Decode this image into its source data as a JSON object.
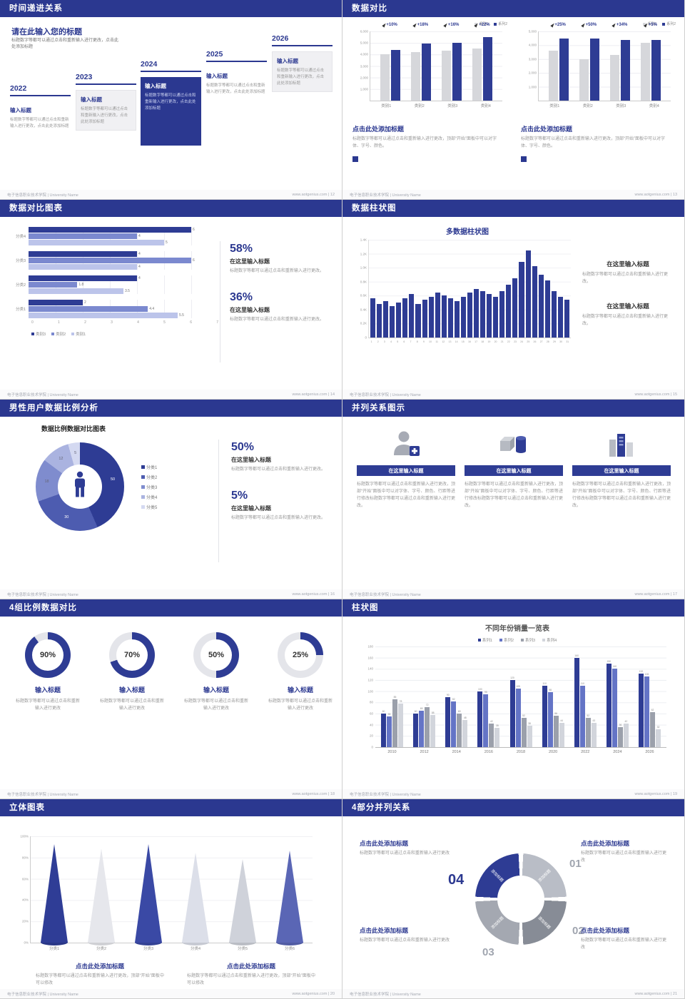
{
  "footer": {
    "org": "电子信息职业技术学院 | University Name"
  },
  "slides": {
    "timeline": {
      "header": "时间递进关系",
      "footer_right": "www.aotgenius.com | 12",
      "title": "请在此输入您的标题",
      "subtitle": "标题数字等都可以通过点击和重新输入进行更改，点击此处添加标题",
      "item_title": "输入标题",
      "item_body": "标题数字等都可以通过点击和重新输入进行更改，点击此处添加标题",
      "years": [
        "2022",
        "2023",
        "2024",
        "2025",
        "2026"
      ]
    },
    "compare": {
      "header": "数据对比",
      "footer_right": "www.aotgenius.com | 13",
      "caption_title": "点击此处添加标题",
      "caption_body": "标题数字等都可以通过点击和重新输入进行更改，顶部“开始”面板中可以对字体、字号、颜色。",
      "chart_data": [
        {
          "type": "bar",
          "legend": {
            "labels": [
              "系列1",
              "系列2"
            ],
            "colors": [
              "#d6d7db",
              "#2e3c94"
            ]
          },
          "categories": [
            "类别1",
            "类别2",
            "类别3",
            "类别4"
          ],
          "series": [
            {
              "name": "系列1",
              "values": [
                4000,
                4200,
                4300,
                4500
              ]
            },
            {
              "name": "系列2",
              "values": [
                4400,
                4950,
                5000,
                5500
              ]
            }
          ],
          "growth": [
            "+10%",
            "+18%",
            "+16%",
            "+22%"
          ],
          "y_labels": [
            "6,000",
            "5,000",
            "4,000",
            "3,000",
            "2,000",
            "1,000"
          ],
          "y_max": 6000
        },
        {
          "type": "bar",
          "legend": {
            "labels": [
              "系列1",
              "系列2"
            ],
            "colors": [
              "#d6d7db",
              "#2e3c94"
            ]
          },
          "categories": [
            "类别1",
            "类别2",
            "类别3",
            "类别4"
          ],
          "series": [
            {
              "name": "系列1",
              "values": [
                3600,
                3000,
                3300,
                4200
              ]
            },
            {
              "name": "系列2",
              "values": [
                4500,
                4500,
                4400,
                4400
              ]
            }
          ],
          "growth": [
            "+25%",
            "+50%",
            "+34%",
            "+5%"
          ],
          "y_labels": [
            "5,000",
            "4,000",
            "3,000",
            "2,000",
            "1,000"
          ],
          "y_max": 5000
        }
      ]
    },
    "hbar": {
      "header": "数据对比图表",
      "footer_right": "www.aotgenius.com | 14",
      "chart_data": {
        "type": "bar-horizontal",
        "categories": [
          "分类4",
          "分类3",
          "分类2",
          "分类1"
        ],
        "series": [
          {
            "name": "类别3",
            "color": "#2e3c94",
            "values": [
              6,
              4,
              4,
              2
            ]
          },
          {
            "name": "类别2",
            "color": "#7b89cf",
            "values": [
              4,
              6,
              1.8,
              4.4
            ]
          },
          {
            "name": "类别1",
            "color": "#bcc4ea",
            "values": [
              5,
              4,
              3.5,
              5.5
            ]
          }
        ],
        "x_ticks": [
          "0",
          "1",
          "2",
          "3",
          "4",
          "5",
          "6",
          "7"
        ],
        "x_max": 7,
        "legend": {
          "labels": [
            "类别3",
            "类别2",
            "类别1"
          ],
          "colors": [
            "#2e3c94",
            "#7b89cf",
            "#bcc4ea"
          ]
        }
      },
      "stats": [
        {
          "pct": "58%",
          "title": "在这里输入标题",
          "body": "标题数字等都可以通过点击和重新输入进行更改。"
        },
        {
          "pct": "36%",
          "title": "在这里输入标题",
          "body": "标题数字等都可以通过点击和重新输入进行更改。"
        }
      ]
    },
    "colchart": {
      "header": "数据柱状图",
      "footer_right": "www.aotgenius.com | 15",
      "title": "多数据柱状图",
      "chart_data": {
        "type": "bar",
        "values": [
          560,
          480,
          520,
          450,
          500,
          560,
          620,
          480,
          540,
          580,
          640,
          600,
          560,
          520,
          580,
          640,
          700,
          660,
          620,
          580,
          660,
          760,
          850,
          1080,
          1250,
          1020,
          900,
          820,
          660,
          580,
          540
        ],
        "x_labels": [
          "1",
          "2",
          "3",
          "4",
          "5",
          "6",
          "7",
          "8",
          "9",
          "10",
          "11",
          "12",
          "13",
          "14",
          "15",
          "16",
          "17",
          "18",
          "19",
          "20",
          "21",
          "22",
          "23",
          "24",
          "25",
          "26",
          "27",
          "28",
          "29",
          "30",
          "31"
        ],
        "y_labels": [
          "1.4K",
          "1.2K",
          "1.0K",
          "0.8K",
          "0.6K",
          "0.4K",
          "0.2K",
          "0"
        ],
        "y_max": 1400
      },
      "blocks": [
        {
          "title": "在这里输入标题",
          "body": "标题数字等都可以通过点击和重新输入进行更改。"
        },
        {
          "title": "在这里输入标题",
          "body": "标题数字等都可以通过点击和重新输入进行更改。"
        }
      ]
    },
    "donut": {
      "header": "男性用户数据比例分析",
      "footer_right": "www.aotgenius.com | 16",
      "chart_title": "数据比例数据对比图表",
      "chart_data": {
        "type": "pie",
        "slices": [
          {
            "label": "分类1",
            "value": 50,
            "color": "#2e3c94"
          },
          {
            "label": "分类2",
            "value": 30,
            "color": "#4d5cb0"
          },
          {
            "label": "分类3",
            "value": 18,
            "color": "#7f8cce"
          },
          {
            "label": "分类4",
            "value": 12,
            "color": "#aab3e0"
          },
          {
            "label": "分类5",
            "value": 5,
            "color": "#d4d9f1"
          }
        ]
      },
      "legend": {
        "labels": [
          "分类1",
          "分类2",
          "分类3",
          "分类4",
          "分类5"
        ],
        "colors": [
          "#2e3c94",
          "#4d5cb0",
          "#7f8cce",
          "#aab3e0",
          "#d4d9f1"
        ]
      },
      "stats": [
        {
          "pct": "50%",
          "title": "在这里输入标题",
          "body": "标题数字等都可以通过点击和重新输入进行更改。"
        },
        {
          "pct": "5%",
          "title": "在这里输入标题",
          "body": "标题数字等都可以通过点击和重新输入进行更改。"
        }
      ]
    },
    "parallel": {
      "header": "并列关系图示",
      "footer_right": "www.aotgenius.com | 17",
      "items": [
        {
          "icon": "nurse-icon",
          "btn": "在这里输入标题",
          "body": "标题数字等都可以通过点击和重新输入进行更改，顶部“开始”面板中可以对字体、字号、颜色、行距等进行修改标题数字等都可以通过点击和重新输入进行更改。"
        },
        {
          "icon": "shapes-icon",
          "btn": "在这里输入标题",
          "body": "标题数字等都可以通过点击和重新输入进行更改，顶部“开始”面板中可以对字体、字号、颜色、行距等进行修改标题数字等都可以通过点击和重新输入进行更改。"
        },
        {
          "icon": "building-icon",
          "btn": "在这里输入标题",
          "body": "标题数字等都可以通过点击和重新输入进行更改，顶部“开始”面板中可以对字体、字号、颜色、行距等进行修改标题数字等都可以通过点击和重新输入进行更改。"
        }
      ]
    },
    "gauges": {
      "header": "4组比例数据对比",
      "footer_right": "www.aotgenius.com | 18",
      "items": [
        {
          "pct": 90,
          "label": "90%",
          "title": "输入标题",
          "body": "标题数字等都可以通过点击和重新输入进行更改"
        },
        {
          "pct": 70,
          "label": "70%",
          "title": "输入标题",
          "body": "标题数字等都可以通过点击和重新输入进行更改"
        },
        {
          "pct": 50,
          "label": "50%",
          "title": "输入标题",
          "body": "标题数字等都可以通过点击和重新输入进行更改"
        },
        {
          "pct": 25,
          "label": "25%",
          "title": "输入标题",
          "body": "标题数字等都可以通过点击和重新输入进行更改"
        }
      ]
    },
    "grouped": {
      "header": "柱状图",
      "footer_right": "www.aotgenius.com | 19",
      "title": "不同年份销量一览表",
      "chart_data": {
        "type": "bar",
        "legend": {
          "labels": [
            "系列1",
            "系列2",
            "系列3",
            "系列4"
          ],
          "colors": [
            "#2e3c94",
            "#6474c6",
            "#9ba0ab",
            "#d2d5dc"
          ]
        },
        "categories": [
          "2010",
          "2012",
          "2014",
          "2016",
          "2018",
          "2020",
          "2022",
          "2024",
          "2026"
        ],
        "series": [
          {
            "name": "系列1",
            "color": "#2e3c94",
            "values": [
              60,
              60,
              90,
              100,
              120,
              110,
              160,
              150,
              132
            ]
          },
          {
            "name": "系列2",
            "color": "#6474c6",
            "values": [
              55,
              65,
              82,
              95,
              105,
              98,
              110,
              140,
              126
            ]
          },
          {
            "name": "系列3",
            "color": "#9ba0ab",
            "values": [
              85,
              72,
              60,
              42,
              52,
              56,
              52,
              36,
              62
            ]
          },
          {
            "name": "系列4",
            "color": "#d2d5dc",
            "values": [
              78,
              58,
              48,
              35,
              38,
              44,
              43,
              42,
              32
            ]
          }
        ],
        "y_labels": [
          "180",
          "160",
          "140",
          "120",
          "100",
          "80",
          "60",
          "40",
          "20",
          "0"
        ],
        "y_max": 180
      }
    },
    "cones": {
      "header": "立体图表",
      "footer_right": "www.aotgenius.com | 20",
      "chart_data": {
        "type": "bar",
        "categories": [
          "分类1",
          "分类2",
          "分类3",
          "分类4",
          "分类5",
          "分类6"
        ],
        "values_pct": [
          92,
          88,
          92,
          84,
          78,
          86
        ],
        "colors": [
          "#2f3d96",
          "#e6e7ec",
          "#3a49a5",
          "#dcdfe9",
          "#cfd2da",
          "#5a66b5"
        ],
        "y_labels": [
          "100%",
          "80%",
          "60%",
          "40%",
          "20%",
          "0%"
        ]
      },
      "blocks": [
        {
          "title": "点击此处添加标题",
          "body": "标题数字等都可以通过点击和重新输入进行更改，顶部“开始”面板中可以修改"
        },
        {
          "title": "点击此处添加标题",
          "body": "标题数字等都可以通过点击和重新输入进行更改，顶部“开始”面板中可以修改"
        }
      ]
    },
    "four": {
      "header": "4部分并列关系",
      "footer_right": "www.aotgenius.com | 21",
      "segment_label": "添加标题",
      "seg_colors": [
        "#b9bdc6",
        "#878c96",
        "#a4a8b1",
        "#2e3c94"
      ],
      "numbers": [
        "01",
        "02",
        "03",
        "04"
      ],
      "blocks": [
        {
          "title": "点击此处添加标题",
          "body": "标题数字等都可以通过点击和重新输入进行更改"
        },
        {
          "title": "点击此处添加标题",
          "body": "标题数字等都可以通过点击和重新输入进行更改"
        },
        {
          "title": "点击此处添加标题",
          "body": "标题数字等都可以通过点击和重新输入进行更改"
        },
        {
          "title": "点击此处添加标题",
          "body": "标题数字等都可以通过点击和重新输入进行更改"
        }
      ]
    }
  }
}
